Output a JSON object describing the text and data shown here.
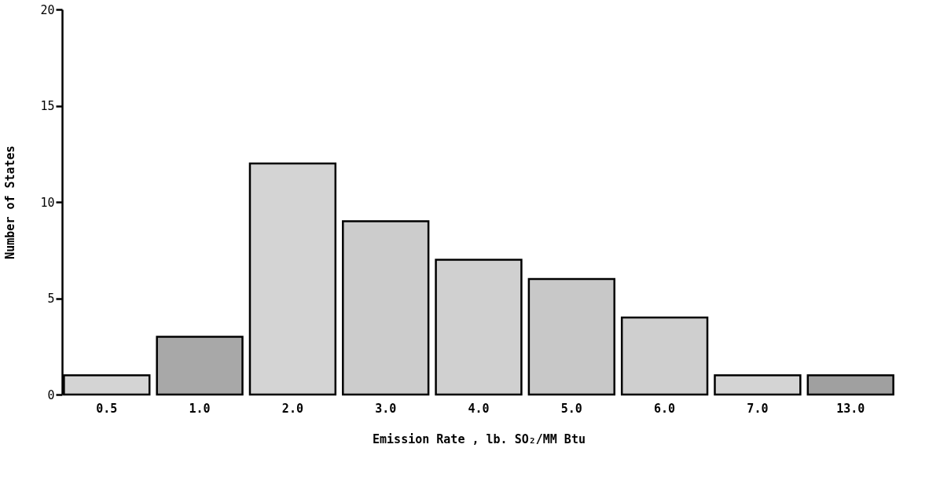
{
  "chart_data": {
    "type": "bar",
    "xlabel": "Emission Rate , lb. SO₂/MM Btu",
    "ylabel": "Number of States",
    "categories": [
      "0.5",
      "1.0",
      "2.0",
      "3.0",
      "4.0",
      "5.0",
      "6.0",
      "7.0",
      "13.0"
    ],
    "values": [
      1,
      3,
      12,
      9,
      7,
      6,
      4,
      1,
      1
    ],
    "colors": [
      "#d4d4d4",
      "#a8a8a8",
      "#d4d4d4",
      "#cccccc",
      "#d0d0d0",
      "#c8c8c8",
      "#cfcfcf",
      "#d4d4d4",
      "#a0a0a0"
    ],
    "ylim": [
      0,
      20
    ],
    "yticks": [
      0,
      5,
      10,
      15,
      20
    ],
    "grid": false
  }
}
